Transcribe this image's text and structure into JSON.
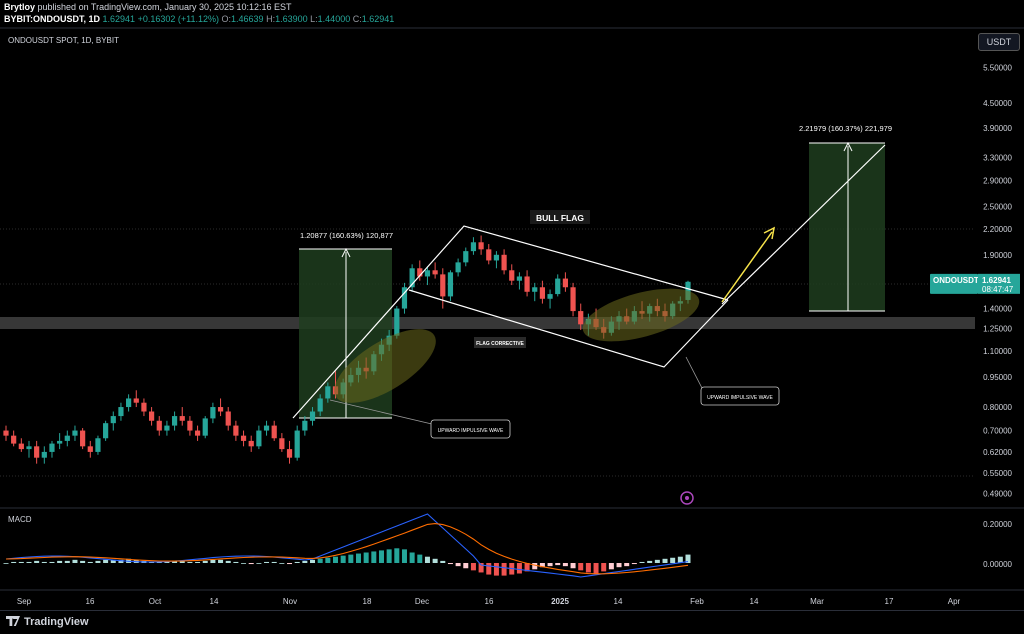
{
  "header": {
    "publisher": "Brytloy",
    "published_text": "published on TradingView.com, January 30, 2025 10:12:16 EST",
    "symbol": "BYBIT:ONDOUSDT, 1D",
    "price": "1.62941",
    "change": "+0.16302 (+11.12%)",
    "o_label": "O:",
    "o_value": "1.46639",
    "h_label": "H:",
    "h_value": "1.63900",
    "l_label": "L:",
    "l_value": "1.44000",
    "c_label": "C:",
    "c_value": "1.62941"
  },
  "pane_title": "ONDOUSDT SPOT, 1D, BYBIT",
  "currency_button": "USDT",
  "price_label": {
    "symbol": "ONDOUSDT",
    "price": "1.62941",
    "countdown": "08:47:47"
  },
  "indicator_label": "MACD",
  "annotations": {
    "bull_flag": "BULL FLAG",
    "flag_corrective": "FLAG CORRECTIVE",
    "upward_impulsive_1": "UPWARD IMPULSIVE WAVE",
    "upward_impulsive_2": "UPWARD IMPULSIVE WAVE",
    "measure_1": "1.20877 (160.63%) 120,877",
    "measure_2": "2.21979 (160.37%) 221,979"
  },
  "footer": {
    "brand": "TradingView"
  },
  "colors": {
    "up": "#26a69a",
    "down": "#ef5350",
    "macd": "#2962ff",
    "signal": "#ff6d00",
    "zone": "#1e3d1e",
    "arrow": "#f7e34a",
    "ellipse": "#6b6a1e",
    "grid": "#1c1c1c"
  },
  "chart_data": {
    "type": "candlestick",
    "y_scale": "log",
    "price_axis": [
      "5.50000",
      "4.50000",
      "3.90000",
      "3.30000",
      "2.90000",
      "2.50000",
      "2.20000",
      "1.90000",
      "1.62941",
      "1.40000",
      "1.25000",
      "1.10000",
      "0.95000",
      "0.80000",
      "0.70000",
      "0.62000",
      "0.55000",
      "0.49000"
    ],
    "macd_axis": [
      "0.20000",
      "0.00000"
    ],
    "x_ticks": [
      "Sep",
      "16",
      "Oct",
      "14",
      "Nov",
      "18",
      "Dec",
      "16",
      "2025",
      "14",
      "Feb",
      "14",
      "Mar",
      "17",
      "Apr"
    ],
    "candles_approx": [
      [
        0.7,
        0.72,
        0.66,
        0.68
      ],
      [
        0.68,
        0.7,
        0.64,
        0.65
      ],
      [
        0.65,
        0.67,
        0.62,
        0.63
      ],
      [
        0.63,
        0.66,
        0.6,
        0.64
      ],
      [
        0.64,
        0.66,
        0.58,
        0.6
      ],
      [
        0.6,
        0.64,
        0.58,
        0.62
      ],
      [
        0.62,
        0.66,
        0.6,
        0.65
      ],
      [
        0.65,
        0.69,
        0.63,
        0.66
      ],
      [
        0.66,
        0.7,
        0.64,
        0.68
      ],
      [
        0.68,
        0.72,
        0.66,
        0.7
      ],
      [
        0.7,
        0.71,
        0.63,
        0.64
      ],
      [
        0.64,
        0.66,
        0.6,
        0.62
      ],
      [
        0.62,
        0.68,
        0.61,
        0.67
      ],
      [
        0.67,
        0.74,
        0.66,
        0.73
      ],
      [
        0.73,
        0.78,
        0.7,
        0.76
      ],
      [
        0.76,
        0.82,
        0.74,
        0.8
      ],
      [
        0.8,
        0.86,
        0.78,
        0.84
      ],
      [
        0.84,
        0.88,
        0.8,
        0.82
      ],
      [
        0.82,
        0.84,
        0.76,
        0.78
      ],
      [
        0.78,
        0.8,
        0.72,
        0.74
      ],
      [
        0.74,
        0.76,
        0.68,
        0.7
      ],
      [
        0.7,
        0.74,
        0.68,
        0.72
      ],
      [
        0.72,
        0.78,
        0.7,
        0.76
      ],
      [
        0.76,
        0.8,
        0.72,
        0.74
      ],
      [
        0.74,
        0.76,
        0.68,
        0.7
      ],
      [
        0.7,
        0.72,
        0.66,
        0.68
      ],
      [
        0.68,
        0.76,
        0.67,
        0.75
      ],
      [
        0.75,
        0.82,
        0.73,
        0.8
      ],
      [
        0.8,
        0.84,
        0.76,
        0.78
      ],
      [
        0.78,
        0.8,
        0.7,
        0.72
      ],
      [
        0.72,
        0.74,
        0.66,
        0.68
      ],
      [
        0.68,
        0.7,
        0.64,
        0.66
      ],
      [
        0.66,
        0.68,
        0.62,
        0.64
      ],
      [
        0.64,
        0.72,
        0.63,
        0.7
      ],
      [
        0.7,
        0.74,
        0.68,
        0.72
      ],
      [
        0.72,
        0.74,
        0.66,
        0.67
      ],
      [
        0.67,
        0.69,
        0.62,
        0.63
      ],
      [
        0.63,
        0.66,
        0.58,
        0.6
      ],
      [
        0.6,
        0.72,
        0.59,
        0.7
      ],
      [
        0.7,
        0.76,
        0.68,
        0.74
      ],
      [
        0.74,
        0.8,
        0.72,
        0.78
      ],
      [
        0.78,
        0.86,
        0.76,
        0.84
      ],
      [
        0.84,
        0.92,
        0.82,
        0.9
      ],
      [
        0.9,
        0.98,
        0.84,
        0.86
      ],
      [
        0.86,
        0.94,
        0.84,
        0.92
      ],
      [
        0.92,
        1.0,
        0.9,
        0.96
      ],
      [
        0.96,
        1.04,
        0.92,
        1.0
      ],
      [
        1.0,
        1.06,
        0.94,
        0.98
      ],
      [
        0.98,
        1.1,
        0.96,
        1.08
      ],
      [
        1.08,
        1.18,
        1.04,
        1.14
      ],
      [
        1.14,
        1.24,
        1.1,
        1.2
      ],
      [
        1.2,
        1.42,
        1.18,
        1.4
      ],
      [
        1.4,
        1.62,
        1.36,
        1.58
      ],
      [
        1.58,
        1.8,
        1.54,
        1.76
      ],
      [
        1.76,
        1.84,
        1.64,
        1.68
      ],
      [
        1.68,
        1.78,
        1.6,
        1.74
      ],
      [
        1.74,
        1.82,
        1.66,
        1.7
      ],
      [
        1.7,
        1.76,
        1.4,
        1.5
      ],
      [
        1.5,
        1.74,
        1.46,
        1.72
      ],
      [
        1.72,
        1.86,
        1.68,
        1.82
      ],
      [
        1.82,
        1.98,
        1.78,
        1.94
      ],
      [
        1.94,
        2.1,
        1.9,
        2.04
      ],
      [
        2.04,
        2.12,
        1.9,
        1.96
      ],
      [
        1.96,
        2.02,
        1.8,
        1.84
      ],
      [
        1.84,
        1.94,
        1.76,
        1.9
      ],
      [
        1.9,
        1.96,
        1.7,
        1.74
      ],
      [
        1.74,
        1.8,
        1.6,
        1.64
      ],
      [
        1.64,
        1.72,
        1.56,
        1.68
      ],
      [
        1.68,
        1.74,
        1.5,
        1.54
      ],
      [
        1.54,
        1.62,
        1.46,
        1.58
      ],
      [
        1.58,
        1.64,
        1.44,
        1.48
      ],
      [
        1.48,
        1.56,
        1.4,
        1.52
      ],
      [
        1.52,
        1.7,
        1.5,
        1.66
      ],
      [
        1.66,
        1.72,
        1.54,
        1.58
      ],
      [
        1.58,
        1.62,
        1.34,
        1.38
      ],
      [
        1.38,
        1.44,
        1.24,
        1.28
      ],
      [
        1.28,
        1.36,
        1.2,
        1.32
      ],
      [
        1.32,
        1.4,
        1.24,
        1.26
      ],
      [
        1.26,
        1.32,
        1.18,
        1.22
      ],
      [
        1.22,
        1.34,
        1.2,
        1.3
      ],
      [
        1.3,
        1.38,
        1.24,
        1.34
      ],
      [
        1.34,
        1.4,
        1.28,
        1.3
      ],
      [
        1.3,
        1.42,
        1.28,
        1.38
      ],
      [
        1.38,
        1.46,
        1.32,
        1.36
      ],
      [
        1.36,
        1.44,
        1.3,
        1.42
      ],
      [
        1.42,
        1.48,
        1.34,
        1.38
      ],
      [
        1.38,
        1.44,
        1.3,
        1.34
      ],
      [
        1.34,
        1.46,
        1.32,
        1.44
      ],
      [
        1.44,
        1.5,
        1.38,
        1.46
      ],
      [
        1.47,
        1.64,
        1.44,
        1.63
      ]
    ]
  }
}
